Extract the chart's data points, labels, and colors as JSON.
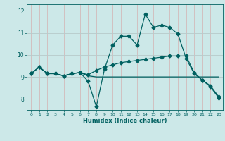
{
  "xlabel": "Humidex (Indice chaleur)",
  "xlim": [
    -0.5,
    23.5
  ],
  "ylim": [
    7.5,
    12.3
  ],
  "yticks": [
    8,
    9,
    10,
    11,
    12
  ],
  "xticks": [
    0,
    1,
    2,
    3,
    4,
    5,
    6,
    7,
    8,
    9,
    10,
    11,
    12,
    13,
    14,
    15,
    16,
    17,
    18,
    19,
    20,
    21,
    22,
    23
  ],
  "bg_color": "#cce8e8",
  "grid_color": "#b0d4d4",
  "line_color": "#006060",
  "line1_x": [
    0,
    1,
    2,
    3,
    4,
    5,
    6,
    7,
    8,
    9,
    10,
    11,
    12,
    13,
    14,
    15,
    16,
    17,
    18,
    19,
    20,
    21,
    22,
    23
  ],
  "line1_y": [
    9.15,
    9.45,
    9.15,
    9.15,
    9.05,
    9.15,
    9.2,
    8.8,
    7.65,
    9.35,
    10.45,
    10.85,
    10.85,
    10.45,
    11.85,
    11.25,
    11.35,
    11.25,
    10.95,
    9.85,
    9.15,
    8.85,
    8.55,
    8.05
  ],
  "line2_x": [
    0,
    1,
    2,
    3,
    4,
    5,
    6,
    7,
    8,
    9,
    10,
    11,
    12,
    13,
    14,
    15,
    16,
    17,
    18,
    19,
    20,
    21,
    22,
    23
  ],
  "line2_y": [
    9.15,
    9.45,
    9.15,
    9.15,
    9.05,
    9.15,
    9.2,
    9.05,
    9.0,
    9.0,
    9.0,
    9.0,
    9.0,
    9.0,
    9.0,
    9.0,
    9.0,
    9.0,
    9.0,
    9.0,
    9.0,
    9.0,
    9.0,
    9.0
  ],
  "line3_x": [
    0,
    1,
    2,
    3,
    4,
    5,
    6,
    7,
    8,
    9,
    10,
    11,
    12,
    13,
    14,
    15,
    16,
    17,
    18,
    19,
    20,
    21,
    22,
    23
  ],
  "line3_y": [
    9.15,
    9.45,
    9.15,
    9.15,
    9.05,
    9.15,
    9.2,
    9.1,
    9.3,
    9.45,
    9.55,
    9.65,
    9.7,
    9.75,
    9.8,
    9.85,
    9.9,
    9.95,
    9.95,
    9.95,
    9.2,
    8.85,
    8.6,
    8.1
  ]
}
